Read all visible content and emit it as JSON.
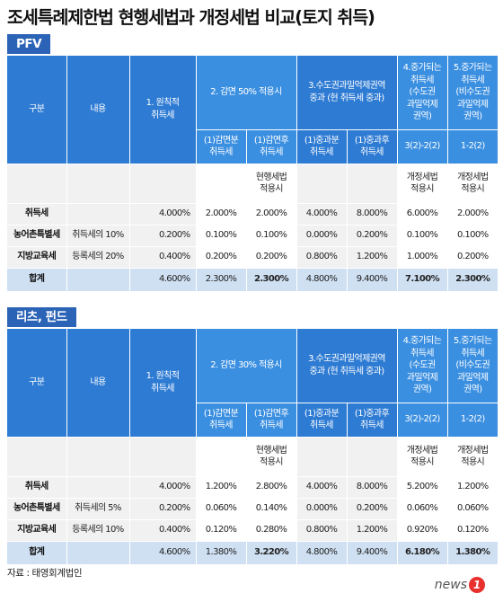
{
  "title": "조세특례제한법 현행세법과 개정세법 비교(토지 취득)",
  "sections": [
    {
      "badge": "PFV",
      "headers": {
        "col_gubun": "구분",
        "col_naeyong": "내용",
        "col_basic": "1. 원칙적\n취득세",
        "col_reduce": "2. 감면 50% 적용시",
        "col_metro": "3.수도권과밀억제권역\n중과 (현 취득세 중과)",
        "col_4": "4.중가되는\n취득세\n(수도권\n과밀억제\n권역)",
        "col_5": "5.중가되는\n취득세\n(비수도권\n과밀억제\n권역)",
        "sub_reduce_before": "(1)감면분\n취득세",
        "sub_reduce_after": "(1)감면후\n취득세",
        "sub_metro_before": "(1)중과분\n취득세",
        "sub_metro_after": "(1)중과후\n취득세",
        "sub_4": "3(2)-2(2)",
        "sub_5": "1-2(2)",
        "note_current": "현행세법\n적용시",
        "note_new_4": "개정세법\n적용시",
        "note_new_5": "개정세법\n적용시"
      },
      "rows": [
        {
          "label": "취득세",
          "desc": "",
          "basic": "4.000%",
          "r1": "2.000%",
          "r2": "2.000%",
          "m1": "4.000%",
          "m2": "8.000%",
          "c4": "6.000%",
          "c5": "2.000%"
        },
        {
          "label": "농어촌특별세",
          "desc": "취득세의 10%",
          "basic": "0.200%",
          "r1": "0.100%",
          "r2": "0.100%",
          "m1": "0.000%",
          "m2": "0.200%",
          "c4": "0.100%",
          "c5": "0.100%"
        },
        {
          "label": "지방교육세",
          "desc": "등록세의 20%",
          "basic": "0.400%",
          "r1": "0.200%",
          "r2": "0.200%",
          "m1": "0.800%",
          "m2": "1.200%",
          "c4": "1.000%",
          "c5": "0.200%"
        }
      ],
      "total": {
        "label": "합계",
        "desc": "",
        "basic": "4.600%",
        "r1": "2.300%",
        "r2": "2.300%",
        "m1": "4.800%",
        "m2": "9.400%",
        "c4": "7.100%",
        "c5": "2.300%"
      }
    },
    {
      "badge": "리츠, 펀드",
      "headers": {
        "col_gubun": "구분",
        "col_naeyong": "내용",
        "col_basic": "1. 원칙적\n취득세",
        "col_reduce": "2. 감면 30% 적용시",
        "col_metro": "3.수도권과밀억제권역\n중과 (현 취득세 중과)",
        "col_4": "4.중가되는\n취득세\n(수도권\n과밀억제\n권역)",
        "col_5": "5.중가되는\n취득세\n(비수도권\n과밀억제\n권역)",
        "sub_reduce_before": "(1)감면분\n취득세",
        "sub_reduce_after": "(1)감면후\n취득세",
        "sub_metro_before": "(1)중과분\n취득세",
        "sub_metro_after": "(1)중과후\n취득세",
        "sub_4": "3(2)-2(2)",
        "sub_5": "1-2(2)",
        "note_current": "현행세법\n적용시",
        "note_new_4": "개정세법\n적용시",
        "note_new_5": "개정세법\n적용시"
      },
      "rows": [
        {
          "label": "취득세",
          "desc": "",
          "basic": "4.000%",
          "r1": "1.200%",
          "r2": "2.800%",
          "m1": "4.000%",
          "m2": "8.000%",
          "c4": "5.200%",
          "c5": "1.200%"
        },
        {
          "label": "농어촌특별세",
          "desc": "취득세의 5%",
          "basic": "0.200%",
          "r1": "0.060%",
          "r2": "0.140%",
          "m1": "0.000%",
          "m2": "0.200%",
          "c4": "0.060%",
          "c5": "0.060%"
        },
        {
          "label": "지방교육세",
          "desc": "등록세의 10%",
          "basic": "0.400%",
          "r1": "0.120%",
          "r2": "0.280%",
          "m1": "0.800%",
          "m2": "1.200%",
          "c4": "0.920%",
          "c5": "0.120%"
        }
      ],
      "total": {
        "label": "합계",
        "desc": "",
        "basic": "4.600%",
        "r1": "1.380%",
        "r2": "3.220%",
        "m1": "4.800%",
        "m2": "9.400%",
        "c4": "6.180%",
        "c5": "1.380%"
      }
    }
  ],
  "source": "자료 : 태영회계법인",
  "logo_text": "news",
  "logo_mark": "1"
}
